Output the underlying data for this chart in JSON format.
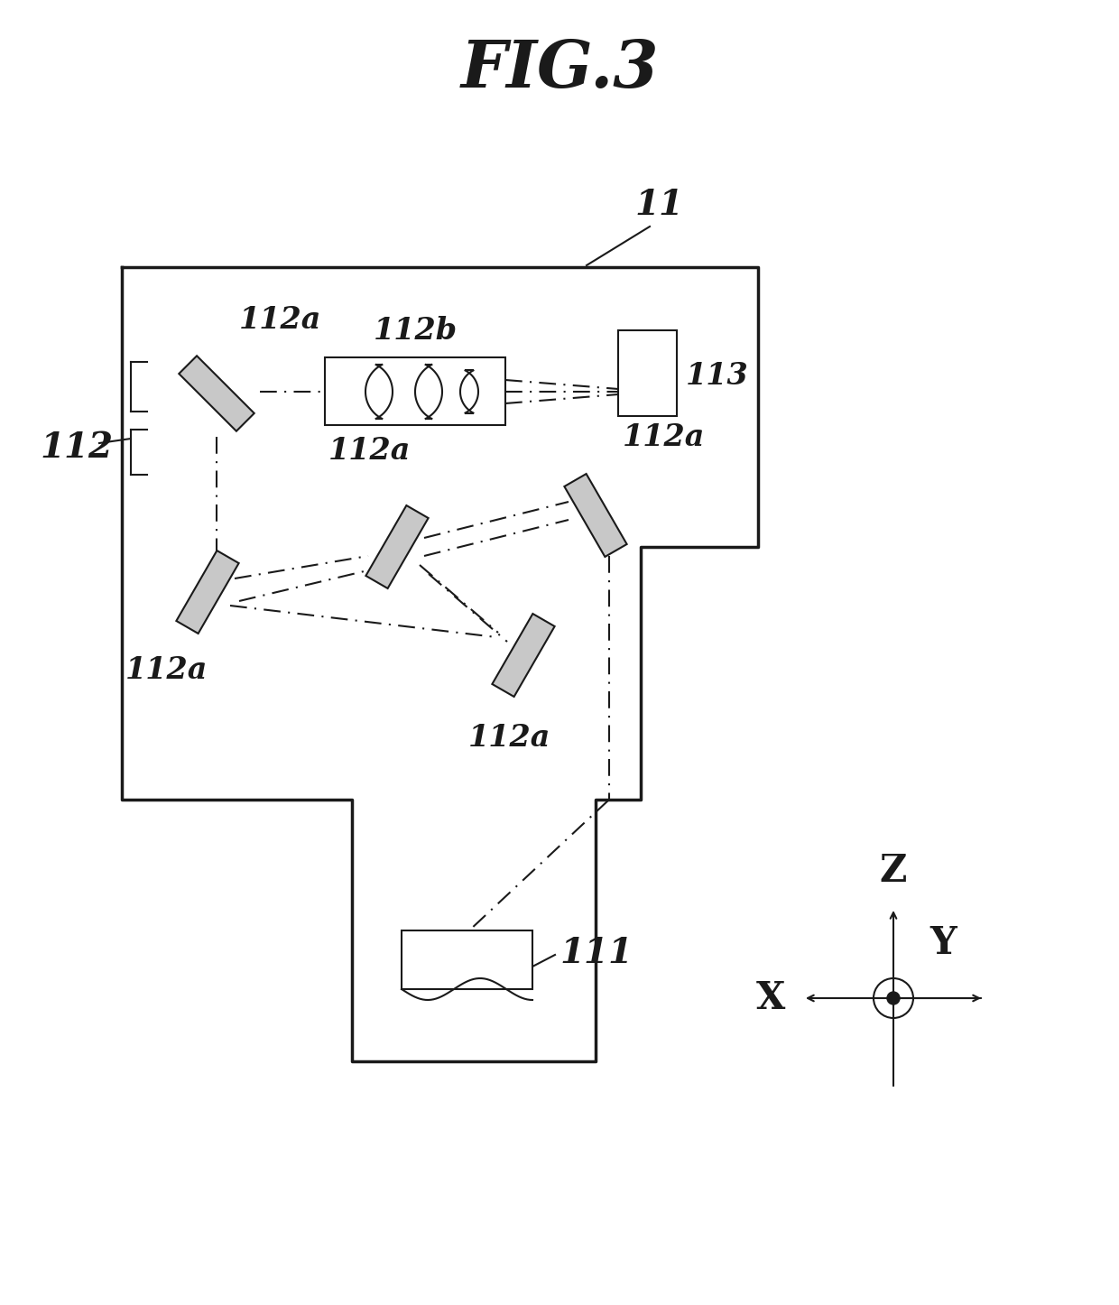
{
  "title": "FIG.3",
  "bg_color": "#ffffff",
  "line_color": "#1a1a1a",
  "fig_width": 12.4,
  "fig_height": 14.46,
  "labels": {
    "fig_title": "FIG.3",
    "label_11": "11",
    "label_111": "111",
    "label_112": "112",
    "label_112a_1": "112a",
    "label_112a_2": "112a",
    "label_112a_3": "112a",
    "label_112a_4": "112a",
    "label_112a_5": "112a",
    "label_112b": "112b",
    "label_113": "113",
    "axis_x": "X",
    "axis_y": "Y",
    "axis_z": "Z"
  }
}
